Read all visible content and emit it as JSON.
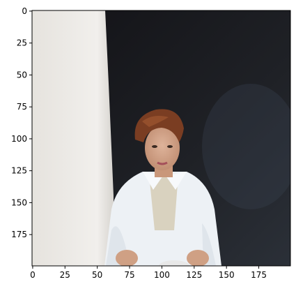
{
  "chart_data": {
    "type": "image",
    "x_ticks": [
      0,
      25,
      50,
      75,
      100,
      125,
      150,
      175
    ],
    "y_ticks": [
      0,
      25,
      50,
      75,
      100,
      125,
      150,
      175
    ],
    "xlim": [
      0,
      200
    ],
    "ylim": [
      0,
      200
    ]
  },
  "colors": {
    "background": "#ffffff",
    "wall_light": "#e9e7e3",
    "wall_dark": "#1d1d21",
    "shirt": "#eef2f6",
    "skin": "#d4a588",
    "hair": "#7a3d22"
  }
}
